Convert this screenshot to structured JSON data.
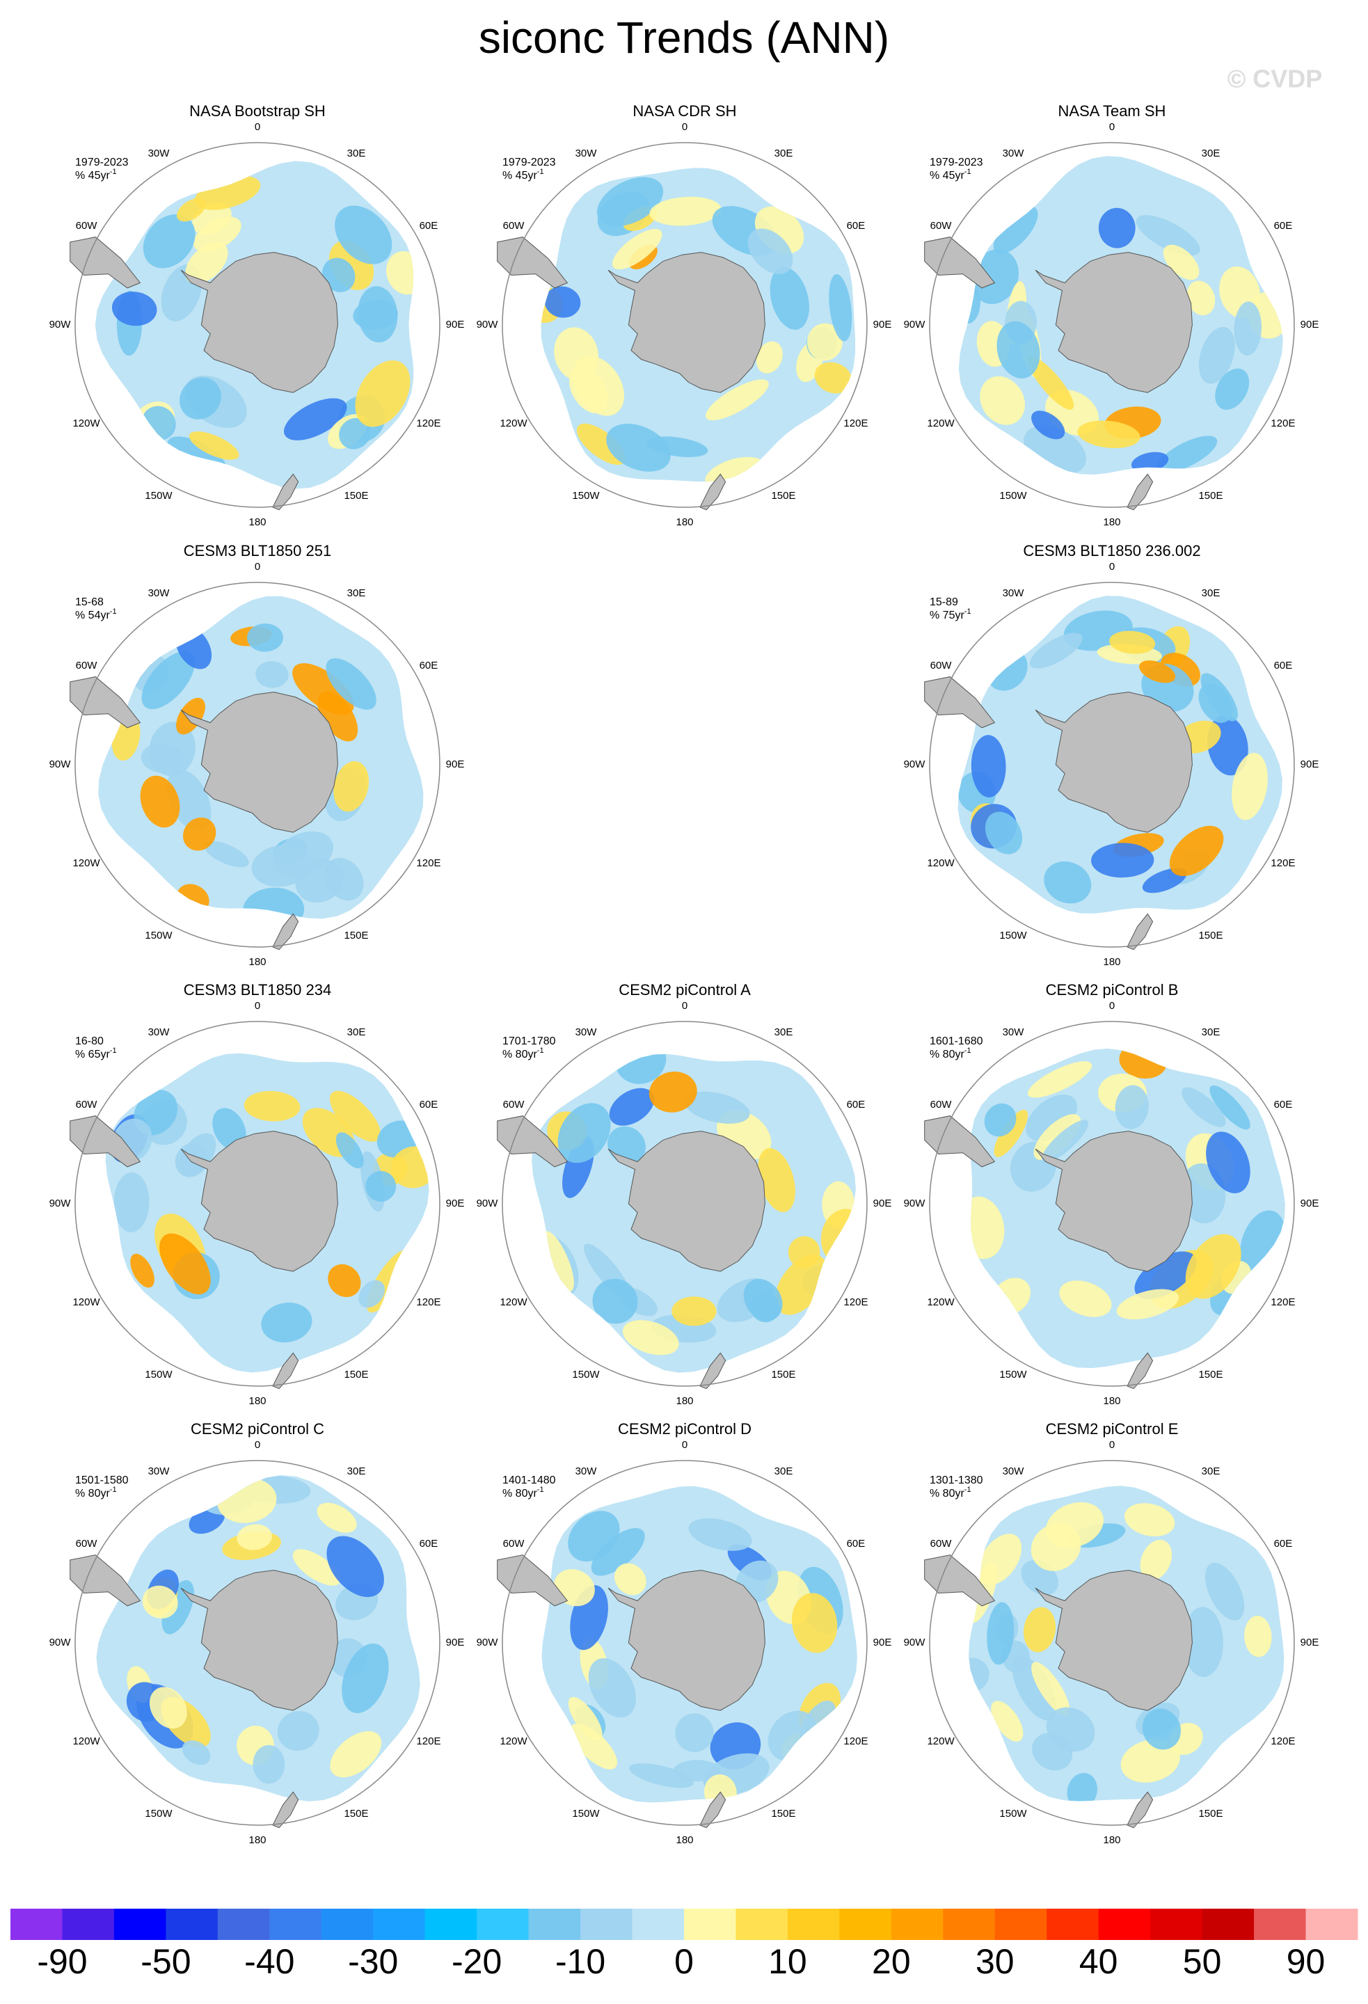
{
  "title": "siconc Trends (ANN)",
  "watermark": "© CVDP",
  "lon_labels": [
    "0",
    "30E",
    "60E",
    "90E",
    "120E",
    "150E",
    "180",
    "150W",
    "120W",
    "90W",
    "60W",
    "30W"
  ],
  "panels": [
    {
      "title": "NASA Bootstrap SH",
      "period": "1979-2023",
      "units": "% 45yr",
      "units_exponent": "-1"
    },
    {
      "title": "NASA CDR SH",
      "period": "1979-2023",
      "units": "% 45yr",
      "units_exponent": "-1"
    },
    {
      "title": "NASA Team SH",
      "period": "1979-2023",
      "units": "% 45yr",
      "units_exponent": "-1"
    },
    {
      "title": "CESM3 BLT1850 251",
      "period": "15-68",
      "units": "% 54yr",
      "units_exponent": "-1"
    },
    {
      "title": "CESM3 BLT1850 236.002",
      "period": "15-89",
      "units": "% 75yr",
      "units_exponent": "-1"
    },
    {
      "title": "CESM3 BLT1850 234",
      "period": "16-80",
      "units": "% 65yr",
      "units_exponent": "-1"
    },
    {
      "title": "CESM2 piControl A",
      "period": "1701-1780",
      "units": "% 80yr",
      "units_exponent": "-1"
    },
    {
      "title": "CESM2 piControl B",
      "period": "1601-1680",
      "units": "% 80yr",
      "units_exponent": "-1"
    },
    {
      "title": "CESM2 piControl C",
      "period": "1501-1580",
      "units": "% 80yr",
      "units_exponent": "-1"
    },
    {
      "title": "CESM2 piControl D",
      "period": "1401-1480",
      "units": "% 80yr",
      "units_exponent": "-1"
    },
    {
      "title": "CESM2 piControl E",
      "period": "1301-1380",
      "units": "% 80yr",
      "units_exponent": "-1"
    }
  ],
  "colorbar": {
    "colors": [
      "#8c30f0",
      "#4b1ee8",
      "#0000ff",
      "#1a3ce8",
      "#4169e1",
      "#3a7ff0",
      "#2090f8",
      "#1aa0ff",
      "#00bfff",
      "#30c8ff",
      "#78c8f0",
      "#a0d4f0",
      "#bfe4f5",
      "#fff8a8",
      "#ffe050",
      "#ffcc20",
      "#ffb800",
      "#ffa000",
      "#ff8000",
      "#ff6000",
      "#ff3000",
      "#ff0000",
      "#e00000",
      "#c80000",
      "#e85858",
      "#ffb4b4"
    ],
    "labels": [
      -90,
      -50,
      -40,
      -30,
      -20,
      -10,
      0,
      10,
      20,
      30,
      40,
      50,
      90
    ]
  }
}
